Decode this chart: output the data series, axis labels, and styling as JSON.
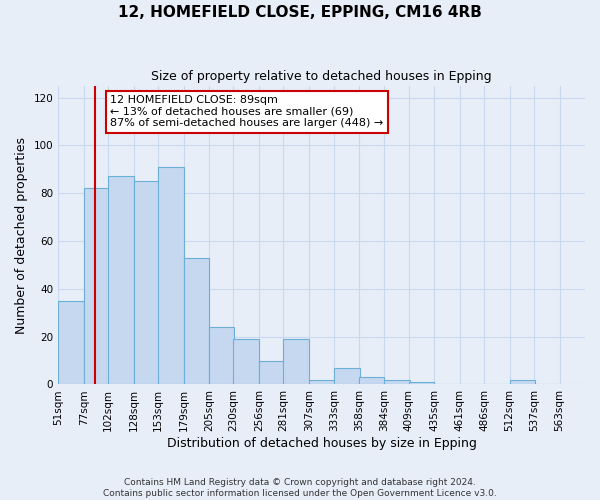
{
  "title": "12, HOMEFIELD CLOSE, EPPING, CM16 4RB",
  "subtitle": "Size of property relative to detached houses in Epping",
  "xlabel": "Distribution of detached houses by size in Epping",
  "ylabel": "Number of detached properties",
  "bin_labels": [
    "51sqm",
    "77sqm",
    "102sqm",
    "128sqm",
    "153sqm",
    "179sqm",
    "205sqm",
    "230sqm",
    "256sqm",
    "281sqm",
    "307sqm",
    "333sqm",
    "358sqm",
    "384sqm",
    "409sqm",
    "435sqm",
    "461sqm",
    "486sqm",
    "512sqm",
    "537sqm",
    "563sqm"
  ],
  "bin_edges": [
    51,
    77,
    102,
    128,
    153,
    179,
    205,
    230,
    256,
    281,
    307,
    333,
    358,
    384,
    409,
    435,
    461,
    486,
    512,
    537,
    563
  ],
  "bar_heights": [
    35,
    82,
    87,
    85,
    91,
    53,
    24,
    19,
    10,
    19,
    2,
    7,
    3,
    2,
    1,
    0,
    0,
    0,
    2,
    0
  ],
  "bar_color": "#c5d8f0",
  "bar_edge_color": "#6baed6",
  "grid_color": "#c8d8ee",
  "property_size": 89,
  "red_line_color": "#cc0000",
  "annotation_line1": "12 HOMEFIELD CLOSE: 89sqm",
  "annotation_line2": "← 13% of detached houses are smaller (69)",
  "annotation_line3": "87% of semi-detached houses are larger (448) →",
  "annotation_box_color": "#ffffff",
  "annotation_box_edge": "#cc0000",
  "ylim": [
    0,
    125
  ],
  "yticks": [
    0,
    20,
    40,
    60,
    80,
    100,
    120
  ],
  "footer_line1": "Contains HM Land Registry data © Crown copyright and database right 2024.",
  "footer_line2": "Contains public sector information licensed under the Open Government Licence v3.0.",
  "background_color": "#e8eef8",
  "title_fontsize": 11,
  "subtitle_fontsize": 9,
  "axis_label_fontsize": 9,
  "tick_fontsize": 7.5,
  "footer_fontsize": 6.5
}
